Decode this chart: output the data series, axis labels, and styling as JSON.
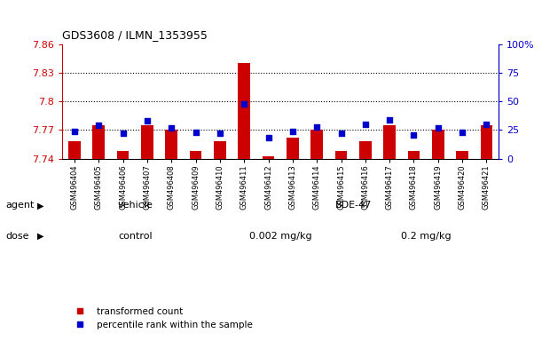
{
  "title": "GDS3608 / ILMN_1353955",
  "samples": [
    "GSM496404",
    "GSM496405",
    "GSM496406",
    "GSM496407",
    "GSM496408",
    "GSM496409",
    "GSM496410",
    "GSM496411",
    "GSM496412",
    "GSM496413",
    "GSM496414",
    "GSM496415",
    "GSM496416",
    "GSM496417",
    "GSM496418",
    "GSM496419",
    "GSM496420",
    "GSM496421"
  ],
  "red_values": [
    7.758,
    7.775,
    7.748,
    7.775,
    7.77,
    7.748,
    7.758,
    7.84,
    7.742,
    7.762,
    7.77,
    7.748,
    7.758,
    7.775,
    7.748,
    7.77,
    7.748,
    7.775
  ],
  "blue_values": [
    24,
    29,
    22,
    33,
    27,
    23,
    22,
    48,
    18,
    24,
    28,
    22,
    30,
    34,
    21,
    27,
    23,
    30
  ],
  "ylim_left": [
    7.74,
    7.86
  ],
  "ylim_right": [
    0,
    100
  ],
  "yticks_left": [
    7.74,
    7.77,
    7.8,
    7.83,
    7.86
  ],
  "yticks_right": [
    0,
    25,
    50,
    75,
    100
  ],
  "hlines": [
    7.77,
    7.8,
    7.83
  ],
  "bar_color": "#cc0000",
  "dot_color": "#0000cc",
  "bar_width": 0.5,
  "dot_size": 25,
  "vehicle_color": "#99ee99",
  "bde_color": "#66dd66",
  "control_color": "#ffaacc",
  "dose1_color": "#dd77dd",
  "dose2_color": "#cc55cc",
  "legend_red": "transformed count",
  "legend_blue": "percentile rank within the sample",
  "tick_label_color_left": "#cc0000",
  "tick_label_color_right": "#0000cc",
  "bg_color": "#ffffff"
}
